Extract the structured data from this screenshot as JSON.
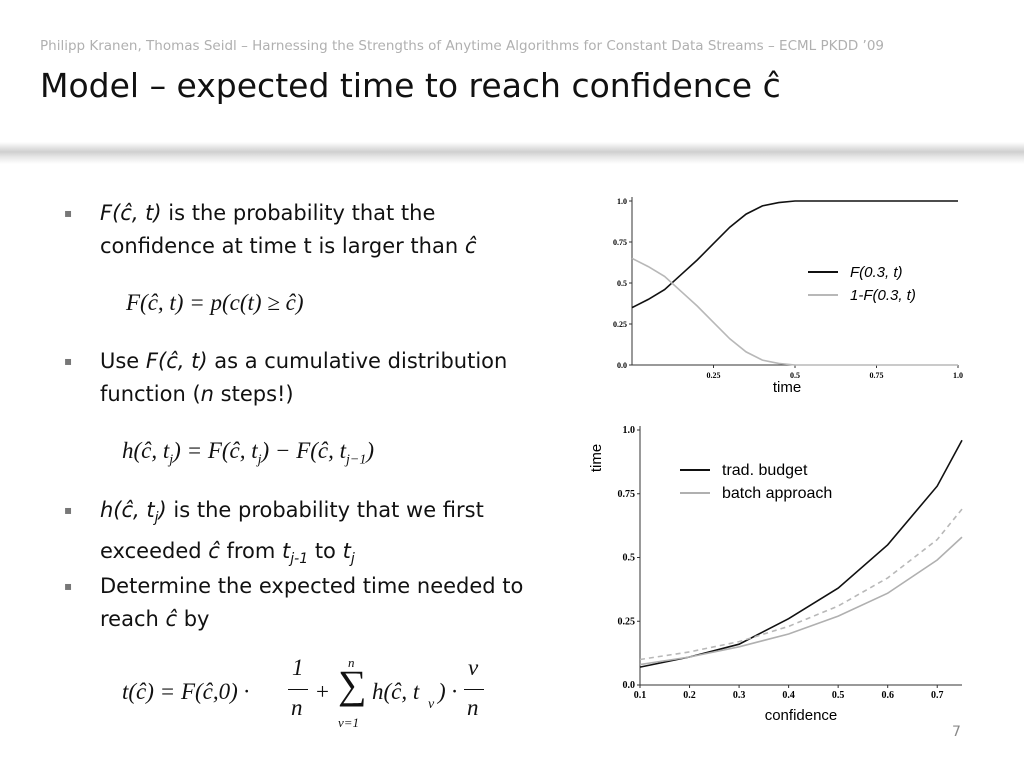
{
  "header": {
    "byline": "Philipp Kranen, Thomas Seidl – Harnessing the Strengths of Anytime Algorithms for Constant Data Streams – ECML PKDD ’09",
    "title": "Model – expected time to reach confidence ĉ"
  },
  "bullets": [
    [
      "F(ĉ, t)",
      " is the probability that the confidence at time t is larger than ",
      "ĉ"
    ],
    [
      "Use ",
      "F(ĉ, t)",
      " as a cumulative distribution function (",
      "n",
      " steps!)"
    ],
    [
      "h(ĉ, t",
      "j",
      ")",
      " is the probability that we first exceeded ",
      "ĉ",
      " from ",
      "t",
      "j-1",
      " to ",
      "t",
      "j"
    ],
    [
      "Determine the expected time needed to reach ",
      "ĉ",
      " by"
    ]
  ],
  "formulas": [
    [
      "F(ĉ, t) = p(c(t) ≥ ĉ)"
    ],
    [
      "h(ĉ, t",
      "j",
      ") = F(ĉ, t",
      "j",
      ") − F(ĉ, t",
      "j−1",
      ")"
    ],
    [
      "t(ĉ) = F(ĉ,0) ·",
      "1",
      "n",
      "+",
      "n",
      "∑",
      "ν=1",
      "h(ĉ, t",
      "ν",
      ") ·",
      "ν",
      "n"
    ]
  ],
  "page_number": "7",
  "chart_data": [
    {
      "type": "line",
      "x_label": "time",
      "x": [
        0,
        0.05,
        0.1,
        0.15,
        0.2,
        0.25,
        0.3,
        0.35,
        0.4,
        0.45,
        0.5,
        0.55,
        0.6,
        0.65,
        0.7,
        0.75,
        0.8,
        0.85,
        0.9,
        0.95,
        1.0
      ],
      "xlim": [
        0,
        1
      ],
      "xticks": [
        0.25,
        0.5,
        0.75,
        {
          "value": 1,
          "label": "1.0"
        }
      ],
      "ylim": [
        0,
        1
      ],
      "yticks": [
        {
          "value": 0,
          "label": "0.0"
        },
        0.25,
        0.5,
        0.75,
        {
          "value": 1,
          "label": "1.0"
        }
      ],
      "series": [
        {
          "name": "F(0.3, t)",
          "color": "#111111",
          "values": [
            0.35,
            0.4,
            0.46,
            0.55,
            0.64,
            0.74,
            0.84,
            0.92,
            0.97,
            0.99,
            1.0,
            1.0,
            1.0,
            1.0,
            1.0,
            1.0,
            1.0,
            1.0,
            1.0,
            1.0,
            1.0
          ]
        },
        {
          "name": "1-F(0.3, t)",
          "color": "#b8b8b8",
          "values": [
            0.65,
            0.6,
            0.54,
            0.45,
            0.36,
            0.26,
            0.16,
            0.08,
            0.03,
            0.01,
            0,
            0,
            0,
            0,
            0,
            0,
            0,
            0,
            0,
            0,
            0
          ]
        }
      ]
    },
    {
      "type": "line",
      "x_label": "confidence",
      "y_label": "time",
      "x": [
        0.1,
        0.2,
        0.3,
        0.4,
        0.5,
        0.6,
        0.7,
        0.75
      ],
      "xlim": [
        0.1,
        0.75
      ],
      "xticks": [
        0.1,
        0.2,
        0.3,
        0.4,
        0.5,
        0.6,
        0.7
      ],
      "ylim": [
        0,
        1
      ],
      "yticks": [
        {
          "value": 0,
          "label": "0.0"
        },
        0.25,
        0.5,
        0.75,
        {
          "value": 1,
          "label": "1.0"
        }
      ],
      "series": [
        {
          "name": "trad. budget",
          "color": "#111111",
          "values": [
            0.07,
            0.11,
            0.16,
            0.26,
            0.38,
            0.55,
            0.78,
            0.96
          ]
        },
        {
          "name": "batch approach",
          "color": "#b0b0b0",
          "values": [
            0.08,
            0.11,
            0.15,
            0.2,
            0.27,
            0.36,
            0.49,
            0.58
          ]
        },
        {
          "color": "#b8b8b8",
          "dashed": true,
          "values": [
            0.1,
            0.13,
            0.17,
            0.23,
            0.31,
            0.42,
            0.57,
            0.69
          ]
        }
      ]
    }
  ]
}
